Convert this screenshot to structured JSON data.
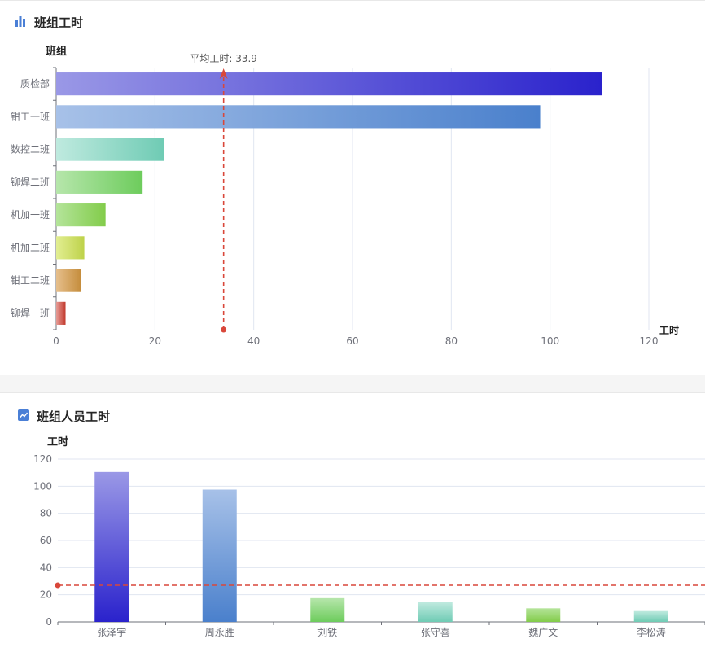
{
  "panel1": {
    "title": "班组工时",
    "icon": "bar-chart-icon"
  },
  "panel2": {
    "title": "班组人员工时",
    "icon": "line-chart-icon"
  },
  "colors": {
    "title": "#262626",
    "axis": "#6e7079",
    "grid": "#e0e6f1",
    "mark_line": "#d9473a"
  },
  "chart_data": [
    {
      "type": "bar",
      "orientation": "horizontal",
      "ylabel": "班组",
      "xlabel": "工时",
      "categories": [
        "质检部",
        "钳工一班",
        "数控二班",
        "铆焊二班",
        "机加一班",
        "机加二班",
        "钳工二班",
        "铆焊一班"
      ],
      "values": [
        110.5,
        98,
        21.8,
        17.5,
        10,
        5.7,
        5,
        1.9
      ],
      "xlim": [
        0,
        120
      ],
      "xticks": [
        0,
        20,
        40,
        60,
        80,
        100,
        120
      ],
      "grid": true,
      "mark_line": {
        "label": "平均工时: 33.9",
        "value": 33.9
      },
      "bar_gradients": [
        [
          "#9a98e6",
          "#2a22cc"
        ],
        [
          "#a7c1e8",
          "#4a80cc"
        ],
        [
          "#bfeadf",
          "#6fcbb4"
        ],
        [
          "#b6e6ab",
          "#6dcc5c"
        ],
        [
          "#b4e49a",
          "#82cc4a"
        ],
        [
          "#e2ee92",
          "#bed24a"
        ],
        [
          "#e6bf8c",
          "#c58d3c"
        ],
        [
          "#e69c96",
          "#c23a2e"
        ]
      ]
    },
    {
      "type": "bar",
      "ylabel": "工时",
      "categories": [
        "张泽宇",
        "周永胜",
        "刘铁",
        "张守喜",
        "魏广文",
        "李松涛"
      ],
      "values": [
        110.5,
        97.5,
        17.5,
        14.5,
        10,
        8
      ],
      "ylim": [
        0,
        120
      ],
      "yticks": [
        0,
        20,
        40,
        60,
        80,
        100,
        120
      ],
      "grid": true,
      "mark_line": {
        "value": 27
      },
      "bar_gradients": [
        [
          "#9a98e6",
          "#2a22cc"
        ],
        [
          "#a7c1e8",
          "#4a80cc"
        ],
        [
          "#b6e6ab",
          "#6dcc5c"
        ],
        [
          "#bfeadf",
          "#6fcbb4"
        ],
        [
          "#b4e49a",
          "#82cc4a"
        ],
        [
          "#bfeadf",
          "#6fcbb4"
        ]
      ]
    }
  ]
}
